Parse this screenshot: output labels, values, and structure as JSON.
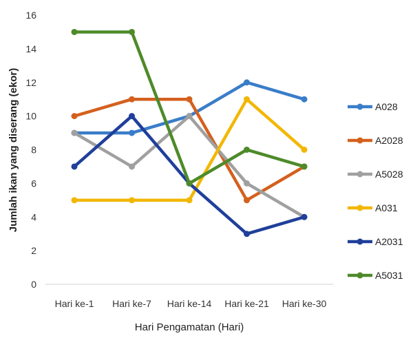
{
  "chart_data": {
    "type": "line",
    "title": "",
    "xlabel": "Hari Pengamatan (Hari)",
    "ylabel": "Jumlah ikan yang diserang (ekor)",
    "categories": [
      "Hari ke-1",
      "Hari ke-7",
      "Hari ke-14",
      "Hari ke-21",
      "Hari ke-30"
    ],
    "ylim": [
      0,
      16
    ],
    "yticks": [
      0,
      2,
      4,
      6,
      8,
      10,
      12,
      14,
      16
    ],
    "grid": false,
    "legend_position": "right",
    "series": [
      {
        "name": "A028",
        "color": "#3A7DC9",
        "values": [
          9,
          9,
          10,
          12,
          11
        ]
      },
      {
        "name": "A2028",
        "color": "#D4601E",
        "values": [
          10,
          11,
          11,
          5,
          7
        ]
      },
      {
        "name": "A5028",
        "color": "#A0A0A0",
        "values": [
          9,
          7,
          10,
          6,
          4
        ]
      },
      {
        "name": "A031",
        "color": "#F2B705",
        "values": [
          5,
          5,
          5,
          11,
          8
        ]
      },
      {
        "name": "A2031",
        "color": "#1F3F9A",
        "values": [
          7,
          10,
          6,
          3,
          4
        ]
      },
      {
        "name": "A5031",
        "color": "#4E8A2A",
        "values": [
          15,
          15,
          6,
          8,
          7
        ]
      }
    ]
  }
}
